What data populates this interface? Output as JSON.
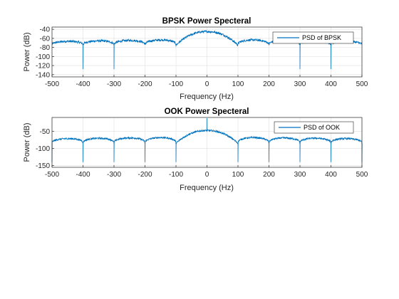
{
  "chart_data": [
    {
      "type": "line",
      "title": "BPSK Power Specteral",
      "xlabel": "Frequency (Hz)",
      "ylabel": "Power (dB)",
      "xlim": [
        -500,
        500
      ],
      "ylim": [
        -145,
        -35
      ],
      "xticks": [
        -500,
        -400,
        -300,
        -200,
        -100,
        0,
        100,
        200,
        300,
        400,
        500
      ],
      "yticks": [
        -140,
        -120,
        -100,
        -80,
        -60,
        -40
      ],
      "grid": true,
      "legend_position": "top-right",
      "series": [
        {
          "name": "PSD of BPSK",
          "color": "#0072BD",
          "main_lobe_peak": -45,
          "side_lobe_peak": -63,
          "null_floor": -75,
          "null_depth_at": [
            -400,
            -300,
            300,
            400
          ],
          "null_depth_value": -128,
          "nulls": [
            -500,
            -400,
            -300,
            -200,
            -100,
            100,
            200,
            300,
            400,
            500
          ]
        }
      ]
    },
    {
      "type": "line",
      "title": "OOK Power Specteral",
      "xlabel": "Frequency (Hz)",
      "ylabel": "Power (dB)",
      "xlim": [
        -500,
        500
      ],
      "ylim": [
        -155,
        -10
      ],
      "xticks": [
        -500,
        -400,
        -300,
        -200,
        -100,
        0,
        100,
        200,
        300,
        400,
        500
      ],
      "yticks": [
        -150,
        -100,
        -50
      ],
      "grid": true,
      "legend_position": "top-right",
      "series": [
        {
          "name": "PSD of OOK",
          "color": "#0072BD",
          "main_lobe_peak": -48,
          "side_lobe_peak": -68,
          "null_floor": -85,
          "null_depth_value": -140,
          "carrier_spike": {
            "x": 0,
            "y": -12
          },
          "nulls": [
            -500,
            -400,
            -300,
            -200,
            -100,
            100,
            200,
            300,
            400,
            500
          ]
        }
      ]
    }
  ]
}
